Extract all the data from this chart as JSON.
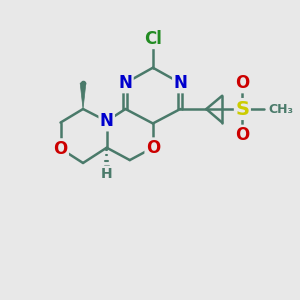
{
  "bg_color": "#e8e8e8",
  "bond_color": "#4a7a6a",
  "bond_width": 1.8,
  "atom_colors": {
    "Cl": "#228B22",
    "N": "#0000CD",
    "O": "#CC0000",
    "S": "#cccc00",
    "C": "#4a7a6a",
    "H": "#4a7a6a"
  }
}
